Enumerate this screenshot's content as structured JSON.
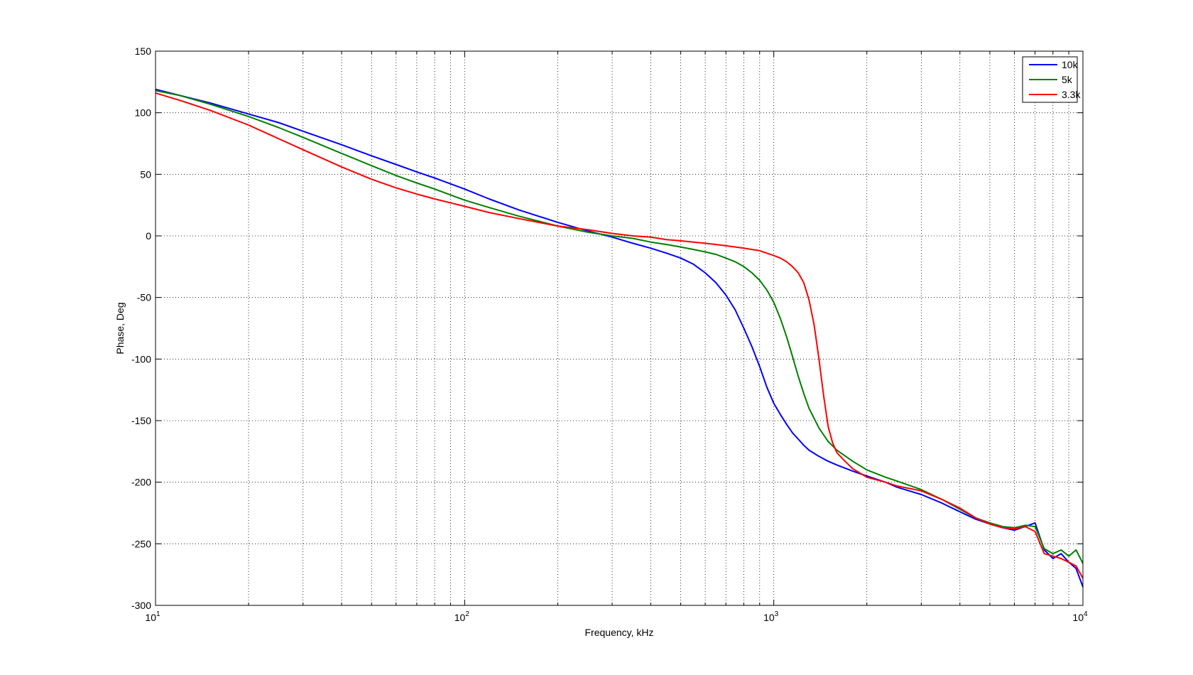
{
  "chart_data": {
    "type": "line",
    "title": "",
    "xlabel": "Frequency, kHz",
    "ylabel": "Phase, Deg",
    "xscale": "log",
    "xlim": [
      10,
      10000
    ],
    "ylim": [
      -300,
      150
    ],
    "xticks": [
      {
        "base": "10",
        "exp": "1"
      },
      {
        "base": "10",
        "exp": "2"
      },
      {
        "base": "10",
        "exp": "3"
      },
      {
        "base": "10",
        "exp": "4"
      }
    ],
    "yticks": [
      "150",
      "100",
      "50",
      "0",
      "-50",
      "-100",
      "-150",
      "-200",
      "-250",
      "-300"
    ],
    "grid": true,
    "legend_position": "top-right",
    "series": [
      {
        "name": "10k",
        "color": "#0000ff",
        "x": [
          10,
          12,
          15,
          20,
          25,
          30,
          40,
          50,
          60,
          70,
          80,
          100,
          120,
          150,
          200,
          250,
          300,
          350,
          400,
          450,
          500,
          550,
          600,
          650,
          700,
          750,
          800,
          850,
          900,
          950,
          1000,
          1050,
          1100,
          1150,
          1200,
          1250,
          1300,
          1400,
          1500,
          1600,
          1800,
          2000,
          2300,
          2500,
          3000,
          3500,
          4000,
          4500,
          5000,
          5500,
          6000,
          6500,
          7000,
          7500,
          8000,
          8500,
          9000,
          9500,
          10000
        ],
        "y": [
          119,
          114,
          108,
          99,
          92,
          85,
          74,
          65,
          58,
          52,
          47,
          38,
          30,
          21,
          11,
          4,
          -1,
          -6,
          -10,
          -14,
          -18,
          -23,
          -30,
          -38,
          -48,
          -60,
          -75,
          -90,
          -106,
          -123,
          -136,
          -145,
          -153,
          -160,
          -165,
          -170,
          -174,
          -179,
          -183,
          -186,
          -191,
          -195,
          -200,
          -204,
          -210,
          -217,
          -224,
          -230,
          -234,
          -237,
          -239,
          -236,
          -233,
          -255,
          -262,
          -258,
          -265,
          -270,
          -285
        ]
      },
      {
        "name": "5k",
        "color": "#007f00",
        "x": [
          10,
          12,
          15,
          20,
          25,
          30,
          40,
          50,
          60,
          70,
          80,
          100,
          120,
          150,
          200,
          250,
          300,
          350,
          400,
          450,
          500,
          550,
          600,
          650,
          700,
          750,
          800,
          850,
          900,
          950,
          1000,
          1050,
          1100,
          1150,
          1200,
          1250,
          1300,
          1400,
          1500,
          1600,
          1800,
          2000,
          2300,
          2500,
          3000,
          3500,
          4000,
          4500,
          5000,
          5500,
          6000,
          6500,
          7000,
          7500,
          8000,
          8500,
          9000,
          9500,
          10000
        ],
        "y": [
          118,
          114,
          107,
          97,
          88,
          80,
          67,
          57,
          49,
          43,
          38,
          29,
          23,
          16,
          8,
          3,
          0,
          -2,
          -5,
          -7,
          -9,
          -11,
          -13,
          -15,
          -18,
          -21,
          -25,
          -30,
          -36,
          -44,
          -54,
          -67,
          -82,
          -98,
          -114,
          -128,
          -140,
          -156,
          -167,
          -174,
          -183,
          -190,
          -196,
          -199,
          -206,
          -214,
          -222,
          -229,
          -233,
          -236,
          -237,
          -235,
          -236,
          -254,
          -258,
          -255,
          -260,
          -255,
          -266
        ]
      },
      {
        "name": "3.3k",
        "color": "#ff0000",
        "x": [
          10,
          12,
          15,
          20,
          25,
          30,
          40,
          50,
          60,
          70,
          80,
          100,
          120,
          150,
          200,
          250,
          300,
          350,
          400,
          450,
          500,
          550,
          600,
          650,
          700,
          750,
          800,
          850,
          900,
          950,
          1000,
          1050,
          1100,
          1150,
          1200,
          1250,
          1300,
          1350,
          1400,
          1450,
          1500,
          1550,
          1600,
          1700,
          1800,
          2000,
          2300,
          2500,
          3000,
          3500,
          4000,
          4500,
          5000,
          5500,
          6000,
          6500,
          7000,
          7500,
          8000,
          8500,
          9000,
          9500,
          10000
        ],
        "y": [
          116,
          110,
          102,
          90,
          79,
          70,
          56,
          46,
          39,
          34,
          30,
          24,
          19,
          14,
          8,
          5,
          2,
          0,
          -1,
          -3,
          -4,
          -5,
          -6,
          -7,
          -8,
          -9,
          -10,
          -11,
          -12,
          -14,
          -16,
          -18,
          -21,
          -25,
          -30,
          -38,
          -52,
          -72,
          -100,
          -130,
          -155,
          -168,
          -176,
          -183,
          -189,
          -196,
          -200,
          -203,
          -207,
          -214,
          -221,
          -229,
          -234,
          -237,
          -238,
          -236,
          -240,
          -258,
          -260,
          -262,
          -265,
          -268,
          -278
        ]
      }
    ]
  }
}
